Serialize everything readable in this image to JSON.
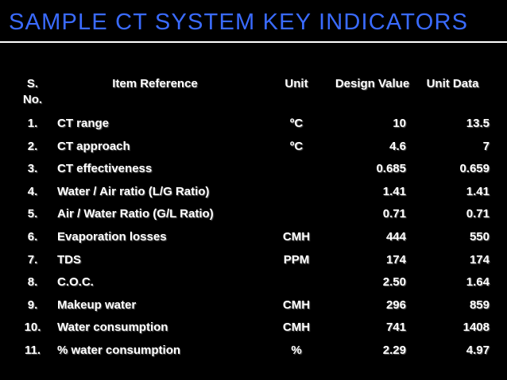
{
  "title": "SAMPLE CT SYSTEM KEY INDICATORS",
  "colors": {
    "background": "#000000",
    "title": "#3a6bff",
    "text": "#ffffff"
  },
  "table": {
    "headers": {
      "sno": "S. No.",
      "item": "Item Reference",
      "unit": "Unit",
      "design": "Design Value",
      "data": "Unit Data"
    },
    "rows": [
      {
        "sno": "1.",
        "item": "CT range",
        "unit": "ºC",
        "design": "10",
        "data": "13.5"
      },
      {
        "sno": "2.",
        "item": "CT approach",
        "unit": "ºC",
        "design": "4.6",
        "data": "7"
      },
      {
        "sno": "3.",
        "item": "CT effectiveness",
        "unit": "",
        "design": "0.685",
        "data": "0.659"
      },
      {
        "sno": "4.",
        "item": "Water / Air ratio (L/G Ratio)",
        "unit": "",
        "design": "1.41",
        "data": "1.41"
      },
      {
        "sno": "5.",
        "item": "Air / Water Ratio (G/L Ratio)",
        "unit": "",
        "design": "0.71",
        "data": "0.71"
      },
      {
        "sno": "6.",
        "item": "Evaporation losses",
        "unit": "CMH",
        "design": "444",
        "data": "550"
      },
      {
        "sno": "7.",
        "item": "TDS",
        "unit": "PPM",
        "design": "174",
        "data": "174"
      },
      {
        "sno": "8.",
        "item": "C.O.C.",
        "unit": "",
        "design": "2.50",
        "data": "1.64"
      },
      {
        "sno": "9.",
        "item": "Makeup water",
        "unit": "CMH",
        "design": "296",
        "data": "859"
      },
      {
        "sno": "10.",
        "item": "Water consumption",
        "unit": "CMH",
        "design": "741",
        "data": "1408"
      },
      {
        "sno": "11.",
        "item": "% water consumption",
        "unit": "%",
        "design": "2.29",
        "data": "4.97"
      }
    ]
  }
}
